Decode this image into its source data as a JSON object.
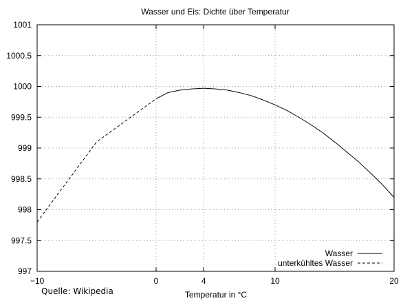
{
  "chart_data": {
    "type": "line",
    "title": "Wasser und Eis: Dichte über Temperatur",
    "xlabel": "Temperatur in °C",
    "ylabel": "",
    "source": "Quelle: Wikipedia",
    "xlim": [
      -10,
      20
    ],
    "ylim": [
      997,
      1001
    ],
    "xticks": [
      -10,
      0,
      4,
      10,
      20
    ],
    "yticks": [
      997,
      997.5,
      998,
      998.5,
      999,
      999.5,
      1000,
      1000.5,
      1001
    ],
    "ytick_labels": [
      "997",
      "997.5",
      "998",
      "998.5",
      "999",
      "999.5",
      "1000",
      "1000.5",
      "1001"
    ],
    "grid": true,
    "legend_position": "bottom-right",
    "series": [
      {
        "name": "Wasser",
        "style": "solid",
        "x": [
          0,
          1,
          2,
          3,
          4,
          5,
          6,
          7,
          8,
          9,
          10,
          11,
          12,
          13,
          14,
          15,
          16,
          17,
          18,
          19,
          20
        ],
        "y": [
          999.8,
          999.9,
          999.94,
          999.96,
          999.97,
          999.96,
          999.94,
          999.9,
          999.85,
          999.78,
          999.7,
          999.61,
          999.5,
          999.38,
          999.25,
          999.1,
          998.94,
          998.78,
          998.6,
          998.41,
          998.2
        ]
      },
      {
        "name": "unterkühltes Wasser",
        "style": "dashed",
        "x": [
          -10,
          -5,
          0
        ],
        "y": [
          997.8,
          999.1,
          999.8
        ]
      }
    ]
  },
  "colors": {
    "axis": "#000000",
    "grid": "#a0a0a0",
    "line": "#000000"
  }
}
